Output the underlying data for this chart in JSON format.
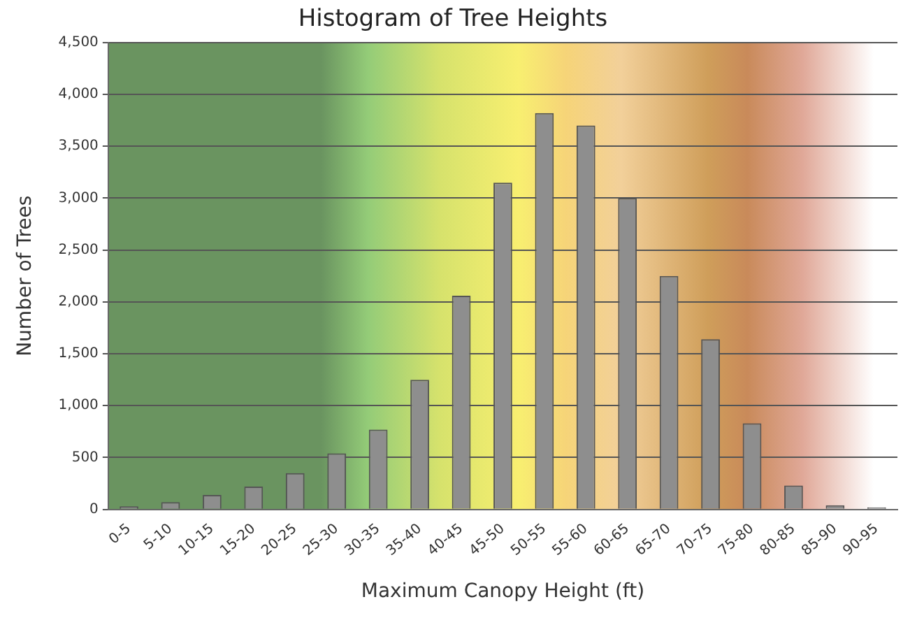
{
  "chart_data": {
    "type": "bar",
    "title": "Histogram of Tree Heights",
    "xlabel": "Maximum Canopy Height (ft)",
    "ylabel": "Number of Trees",
    "categories": [
      "0-5",
      "5-10",
      "10-15",
      "15-20",
      "20-25",
      "25-30",
      "30-35",
      "35-40",
      "40-45",
      "45-50",
      "50-55",
      "55-60",
      "60-65",
      "65-70",
      "70-75",
      "75-80",
      "80-85",
      "85-90",
      "90-95"
    ],
    "values": [
      30,
      70,
      140,
      220,
      350,
      540,
      770,
      1250,
      2060,
      3150,
      3820,
      3700,
      3000,
      2250,
      1640,
      830,
      230,
      40,
      20
    ],
    "color": "#8e8e8e",
    "ylim": [
      0,
      4500
    ],
    "yticks": [
      0,
      500,
      {
        "value": 1000,
        "label": "1,000"
      },
      {
        "value": 1500,
        "label": "1,500"
      },
      {
        "value": 2000,
        "label": "2,000"
      },
      {
        "value": 2500,
        "label": "2,500"
      },
      {
        "value": 3000,
        "label": "3,000"
      },
      {
        "value": 3500,
        "label": "3,500"
      },
      {
        "value": 4000,
        "label": "4,000"
      },
      {
        "value": 4500,
        "label": "4,500"
      }
    ],
    "grid": "y",
    "legend": false
  }
}
